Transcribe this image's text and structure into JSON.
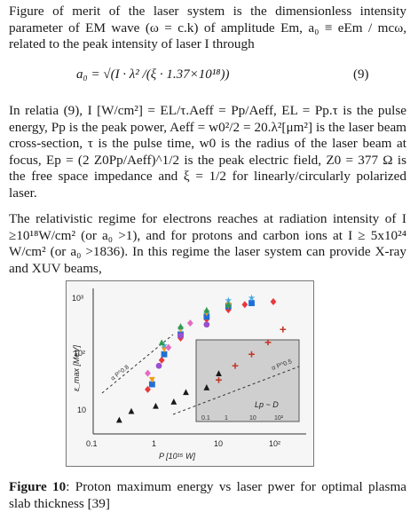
{
  "para1": "Figure of merit of the laser system is the dimensionless intensity parameter of EM wave (ω = c.k) of amplitude Em, a₀ ≡ eEm / mcω, related to the peak intensity of laser I through",
  "equation": {
    "lhs": "a₀ = √(I · λ² /(ξ · 1.37×10¹⁸))",
    "number": "(9)"
  },
  "para2": "In relatia (9), I [W/cm²] = EL/τ.Aeff = Pp/Aeff, EL = Pp.τ is the pulse energy, Pp is the peak power, Aeff = w0²/2 = 20.λ²[μm²] is the laser beam cross-section, τ is the pulse time, w0 is the radius of the laser beam at focus, Ep = (2 Z0Pp/Aeff)^1/2 is the peak electric field, Z0 = 377 Ω is the free space impedance and ξ = 1/2 for linearly/circularly polarized laser.",
  "para3": "The relativistic regime for electrons reaches at radiation intensity of I ≥10¹⁸W/cm² (or a₀ >1), and for protons and carbon ions at I ≥ 5x10²⁴ W/cm² (or a₀ >1836). In this regime the laser system can provide X-ray and XUV beams,",
  "figure": {
    "ylabel": "ε_max [MeV]",
    "xlabel": "P [10¹⁵ W]",
    "y_ticks": [
      "10³",
      "10²",
      "10"
    ],
    "x_ticks": [
      "0.1",
      "1",
      "10",
      "10²"
    ],
    "fit_labels": [
      "α P^0.8",
      "α P^0.5"
    ],
    "inset_label": "Lp ~ D",
    "inset_ticks": [
      "0.1",
      "1",
      "10",
      "10²"
    ]
  },
  "caption": {
    "bold": "Figure 10",
    "text": ": Proton maximum energy vs laser pwer for optimal plasma slab thickness [39]"
  },
  "chart_data": {
    "type": "scatter",
    "title": "",
    "xlabel": "P [10¹⁵ W]",
    "ylabel": "ε_max [MeV]",
    "x_scale": "log",
    "y_scale": "log",
    "xlim": [
      0.05,
      400
    ],
    "ylim": [
      3,
      1500
    ],
    "x_ticks": [
      0.1,
      1,
      10,
      100
    ],
    "y_ticks": [
      10,
      100,
      1000
    ],
    "legend": "none",
    "series": [
      {
        "name": "",
        "color": "#1a1a1a",
        "marker": "triangle-up",
        "points": [
          [
            0.15,
            5.5
          ],
          [
            0.25,
            8
          ],
          [
            0.7,
            10
          ],
          [
            1.5,
            12
          ],
          [
            2.5,
            18
          ],
          [
            6,
            22
          ],
          [
            10,
            40
          ]
        ]
      },
      {
        "name": "",
        "color": "#e8393b",
        "marker": "diamond",
        "points": [
          [
            0.5,
            20
          ],
          [
            0.9,
            70
          ],
          [
            2,
            180
          ],
          [
            6,
            400
          ],
          [
            15,
            600
          ],
          [
            30,
            750
          ],
          [
            100,
            850
          ]
        ]
      },
      {
        "name": "",
        "color": "#1e6fd8",
        "marker": "square",
        "points": [
          [
            0.6,
            25
          ],
          [
            1,
            90
          ],
          [
            2,
            210
          ],
          [
            6,
            450
          ],
          [
            15,
            700
          ],
          [
            40,
            800
          ]
        ]
      },
      {
        "name": "",
        "color": "#f29a1e",
        "marker": "triangle-down",
        "points": [
          [
            0.6,
            30
          ],
          [
            1,
            110
          ],
          [
            2,
            260
          ],
          [
            6,
            520
          ],
          [
            15,
            720
          ]
        ]
      },
      {
        "name": "",
        "color": "#4ba6e2",
        "marker": "star",
        "points": [
          [
            1,
            130
          ],
          [
            2,
            280
          ],
          [
            6,
            560
          ],
          [
            15,
            900
          ],
          [
            40,
            1000
          ]
        ]
      },
      {
        "name": "",
        "color": "#2a9d4a",
        "marker": "triangle-up",
        "points": [
          [
            0.9,
            150
          ],
          [
            2,
            300
          ],
          [
            6,
            600
          ],
          [
            15,
            760
          ]
        ]
      },
      {
        "name": "",
        "color": "#9a4fd0",
        "marker": "circle",
        "points": [
          [
            0.8,
            55
          ],
          [
            2,
            200
          ],
          [
            6,
            320
          ]
        ]
      },
      {
        "name": "",
        "color": "#e26cc0",
        "marker": "diamond",
        "points": [
          [
            0.5,
            40
          ],
          [
            1.2,
            120
          ],
          [
            3,
            340
          ]
        ]
      },
      {
        "name": "",
        "color": "#c0392b",
        "marker": "cross",
        "points": [
          [
            10,
            30
          ],
          [
            20,
            55
          ],
          [
            40,
            90
          ],
          [
            80,
            150
          ],
          [
            150,
            260
          ]
        ]
      }
    ]
  }
}
